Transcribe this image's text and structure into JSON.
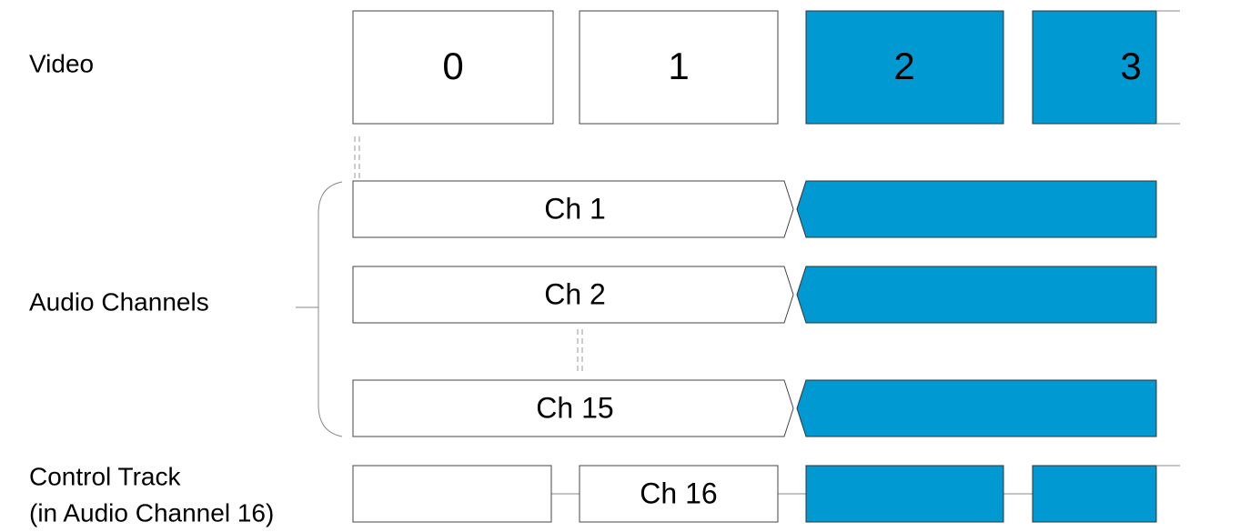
{
  "labels": {
    "video": "Video",
    "audio": "Audio Channels",
    "control": "Control Track",
    "control_sub": "(in Audio Channel 16)"
  },
  "video_frames": [
    "0",
    "1",
    "2",
    "3"
  ],
  "audio_channels": [
    "Ch 1",
    "Ch 2",
    "Ch 15"
  ],
  "control_channel": "Ch 16"
}
